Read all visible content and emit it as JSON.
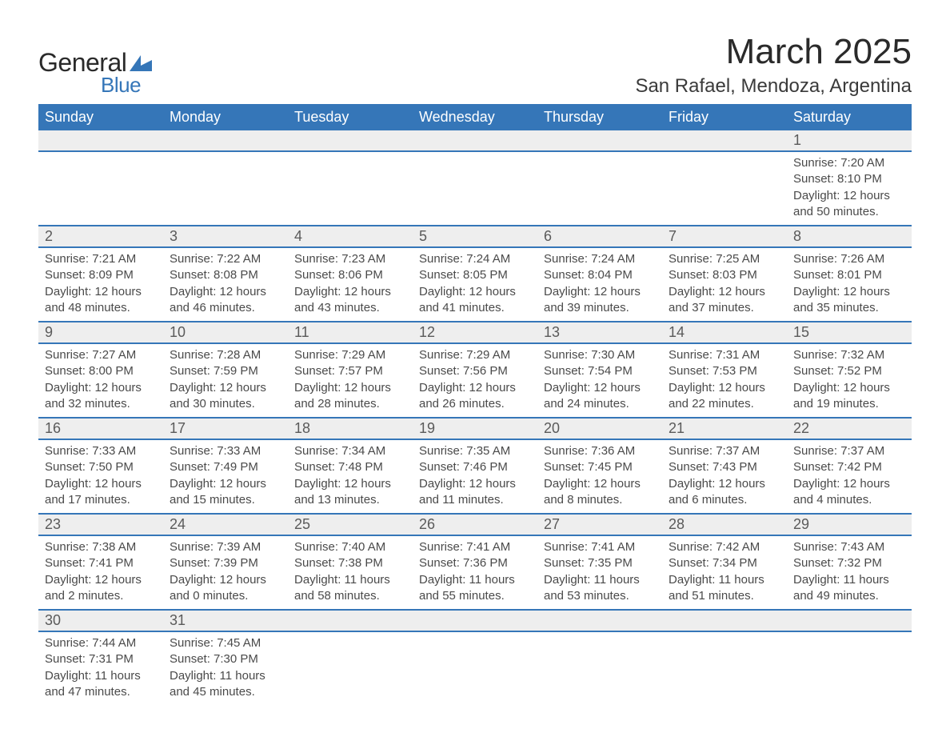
{
  "logo": {
    "general": "General",
    "blue": "Blue",
    "shape_color": "#3576b8"
  },
  "title": "March 2025",
  "location": "San Rafael, Mendoza, Argentina",
  "colors": {
    "header_bg": "#3576b8",
    "header_text": "#ffffff",
    "daynum_bg": "#eeeeee",
    "border": "#3576b8",
    "text": "#4a4a4a"
  },
  "day_headers": [
    "Sunday",
    "Monday",
    "Tuesday",
    "Wednesday",
    "Thursday",
    "Friday",
    "Saturday"
  ],
  "weeks": [
    [
      null,
      null,
      null,
      null,
      null,
      null,
      {
        "n": "1",
        "sr": "Sunrise: 7:20 AM",
        "ss": "Sunset: 8:10 PM",
        "dl": "Daylight: 12 hours and 50 minutes."
      }
    ],
    [
      {
        "n": "2",
        "sr": "Sunrise: 7:21 AM",
        "ss": "Sunset: 8:09 PM",
        "dl": "Daylight: 12 hours and 48 minutes."
      },
      {
        "n": "3",
        "sr": "Sunrise: 7:22 AM",
        "ss": "Sunset: 8:08 PM",
        "dl": "Daylight: 12 hours and 46 minutes."
      },
      {
        "n": "4",
        "sr": "Sunrise: 7:23 AM",
        "ss": "Sunset: 8:06 PM",
        "dl": "Daylight: 12 hours and 43 minutes."
      },
      {
        "n": "5",
        "sr": "Sunrise: 7:24 AM",
        "ss": "Sunset: 8:05 PM",
        "dl": "Daylight: 12 hours and 41 minutes."
      },
      {
        "n": "6",
        "sr": "Sunrise: 7:24 AM",
        "ss": "Sunset: 8:04 PM",
        "dl": "Daylight: 12 hours and 39 minutes."
      },
      {
        "n": "7",
        "sr": "Sunrise: 7:25 AM",
        "ss": "Sunset: 8:03 PM",
        "dl": "Daylight: 12 hours and 37 minutes."
      },
      {
        "n": "8",
        "sr": "Sunrise: 7:26 AM",
        "ss": "Sunset: 8:01 PM",
        "dl": "Daylight: 12 hours and 35 minutes."
      }
    ],
    [
      {
        "n": "9",
        "sr": "Sunrise: 7:27 AM",
        "ss": "Sunset: 8:00 PM",
        "dl": "Daylight: 12 hours and 32 minutes."
      },
      {
        "n": "10",
        "sr": "Sunrise: 7:28 AM",
        "ss": "Sunset: 7:59 PM",
        "dl": "Daylight: 12 hours and 30 minutes."
      },
      {
        "n": "11",
        "sr": "Sunrise: 7:29 AM",
        "ss": "Sunset: 7:57 PM",
        "dl": "Daylight: 12 hours and 28 minutes."
      },
      {
        "n": "12",
        "sr": "Sunrise: 7:29 AM",
        "ss": "Sunset: 7:56 PM",
        "dl": "Daylight: 12 hours and 26 minutes."
      },
      {
        "n": "13",
        "sr": "Sunrise: 7:30 AM",
        "ss": "Sunset: 7:54 PM",
        "dl": "Daylight: 12 hours and 24 minutes."
      },
      {
        "n": "14",
        "sr": "Sunrise: 7:31 AM",
        "ss": "Sunset: 7:53 PM",
        "dl": "Daylight: 12 hours and 22 minutes."
      },
      {
        "n": "15",
        "sr": "Sunrise: 7:32 AM",
        "ss": "Sunset: 7:52 PM",
        "dl": "Daylight: 12 hours and 19 minutes."
      }
    ],
    [
      {
        "n": "16",
        "sr": "Sunrise: 7:33 AM",
        "ss": "Sunset: 7:50 PM",
        "dl": "Daylight: 12 hours and 17 minutes."
      },
      {
        "n": "17",
        "sr": "Sunrise: 7:33 AM",
        "ss": "Sunset: 7:49 PM",
        "dl": "Daylight: 12 hours and 15 minutes."
      },
      {
        "n": "18",
        "sr": "Sunrise: 7:34 AM",
        "ss": "Sunset: 7:48 PM",
        "dl": "Daylight: 12 hours and 13 minutes."
      },
      {
        "n": "19",
        "sr": "Sunrise: 7:35 AM",
        "ss": "Sunset: 7:46 PM",
        "dl": "Daylight: 12 hours and 11 minutes."
      },
      {
        "n": "20",
        "sr": "Sunrise: 7:36 AM",
        "ss": "Sunset: 7:45 PM",
        "dl": "Daylight: 12 hours and 8 minutes."
      },
      {
        "n": "21",
        "sr": "Sunrise: 7:37 AM",
        "ss": "Sunset: 7:43 PM",
        "dl": "Daylight: 12 hours and 6 minutes."
      },
      {
        "n": "22",
        "sr": "Sunrise: 7:37 AM",
        "ss": "Sunset: 7:42 PM",
        "dl": "Daylight: 12 hours and 4 minutes."
      }
    ],
    [
      {
        "n": "23",
        "sr": "Sunrise: 7:38 AM",
        "ss": "Sunset: 7:41 PM",
        "dl": "Daylight: 12 hours and 2 minutes."
      },
      {
        "n": "24",
        "sr": "Sunrise: 7:39 AM",
        "ss": "Sunset: 7:39 PM",
        "dl": "Daylight: 12 hours and 0 minutes."
      },
      {
        "n": "25",
        "sr": "Sunrise: 7:40 AM",
        "ss": "Sunset: 7:38 PM",
        "dl": "Daylight: 11 hours and 58 minutes."
      },
      {
        "n": "26",
        "sr": "Sunrise: 7:41 AM",
        "ss": "Sunset: 7:36 PM",
        "dl": "Daylight: 11 hours and 55 minutes."
      },
      {
        "n": "27",
        "sr": "Sunrise: 7:41 AM",
        "ss": "Sunset: 7:35 PM",
        "dl": "Daylight: 11 hours and 53 minutes."
      },
      {
        "n": "28",
        "sr": "Sunrise: 7:42 AM",
        "ss": "Sunset: 7:34 PM",
        "dl": "Daylight: 11 hours and 51 minutes."
      },
      {
        "n": "29",
        "sr": "Sunrise: 7:43 AM",
        "ss": "Sunset: 7:32 PM",
        "dl": "Daylight: 11 hours and 49 minutes."
      }
    ],
    [
      {
        "n": "30",
        "sr": "Sunrise: 7:44 AM",
        "ss": "Sunset: 7:31 PM",
        "dl": "Daylight: 11 hours and 47 minutes."
      },
      {
        "n": "31",
        "sr": "Sunrise: 7:45 AM",
        "ss": "Sunset: 7:30 PM",
        "dl": "Daylight: 11 hours and 45 minutes."
      },
      null,
      null,
      null,
      null,
      null
    ]
  ]
}
